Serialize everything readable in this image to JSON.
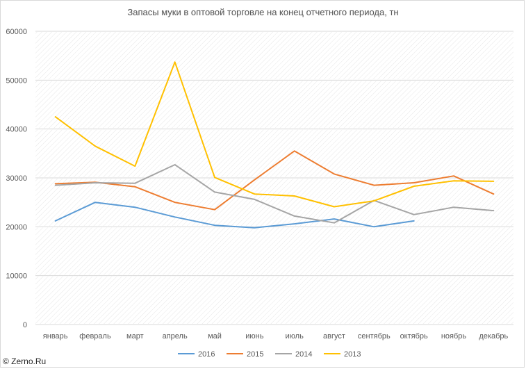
{
  "credit": "© Zerno.Ru",
  "chart_data": {
    "type": "line",
    "title": "Запасы муки в оптовой торговле на конец отчетного периода, тн",
    "xlabel": "",
    "ylabel": "",
    "ylim": [
      0,
      60000
    ],
    "yticks": [
      0,
      10000,
      20000,
      30000,
      40000,
      50000,
      60000
    ],
    "categories": [
      "январь",
      "февраль",
      "март",
      "апрель",
      "май",
      "июнь",
      "июль",
      "август",
      "сентябрь",
      "октябрь",
      "ноябрь",
      "декабрь"
    ],
    "grid": "hatched",
    "legend": "bottom",
    "series": [
      {
        "name": "2016",
        "color": "#5b9bd5",
        "values": [
          21200,
          25000,
          24000,
          22000,
          20300,
          19800,
          20600,
          21600,
          20000,
          21200,
          null,
          null
        ]
      },
      {
        "name": "2015",
        "color": "#ed7d31",
        "values": [
          28800,
          29100,
          28200,
          25000,
          23500,
          29600,
          35500,
          30800,
          28500,
          29000,
          30400,
          26700
        ]
      },
      {
        "name": "2014",
        "color": "#a5a5a5",
        "values": [
          28500,
          29000,
          28900,
          32700,
          27100,
          25600,
          22200,
          20800,
          25400,
          22500,
          24000,
          23300
        ]
      },
      {
        "name": "2013",
        "color": "#ffc000",
        "values": [
          42500,
          36500,
          32400,
          53700,
          30100,
          26700,
          26300,
          24100,
          25300,
          28300,
          29400,
          29300
        ]
      }
    ]
  }
}
